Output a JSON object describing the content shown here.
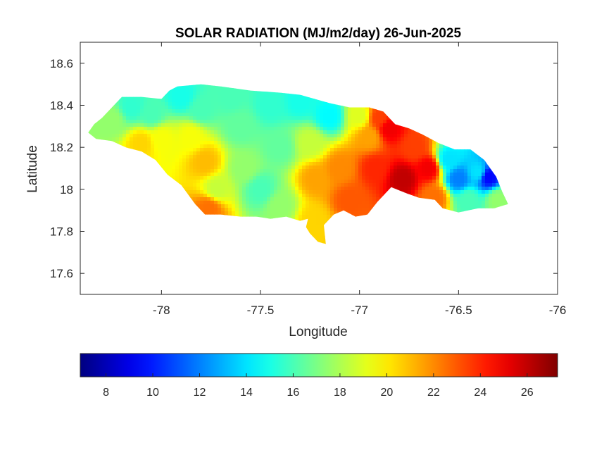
{
  "chart_data": {
    "type": "heatmap",
    "title": "SOLAR RADIATION (MJ/m2/day) 26-Jun-2025",
    "xlabel": "Longitude",
    "ylabel": "Latitude",
    "xlim": [
      -78.41,
      -76.0
    ],
    "ylim": [
      17.5,
      18.7
    ],
    "x_ticks": [
      "-78",
      "-77.5",
      "-77",
      "-76.5",
      "-76"
    ],
    "y_ticks": [
      "17.6",
      "17.8",
      "18",
      "18.2",
      "18.4",
      "18.6"
    ],
    "x_tick_values": [
      -78,
      -77.5,
      -77,
      -76.5,
      -76
    ],
    "y_tick_values": [
      17.6,
      17.8,
      18.0,
      18.2,
      18.4,
      18.6
    ],
    "colorbar": {
      "colormap": "jet",
      "range": [
        6.9,
        27.3
      ],
      "ticks": [
        "8",
        "10",
        "12",
        "14",
        "16",
        "18",
        "20",
        "22",
        "24",
        "26"
      ],
      "tick_values": [
        8,
        10,
        12,
        14,
        16,
        18,
        20,
        22,
        24,
        26
      ],
      "orientation": "horizontal",
      "location": "below"
    },
    "region_outline_lonlat": [
      [
        -78.37,
        18.27
      ],
      [
        -78.34,
        18.31
      ],
      [
        -78.3,
        18.34
      ],
      [
        -78.25,
        18.39
      ],
      [
        -78.2,
        18.44
      ],
      [
        -78.1,
        18.44
      ],
      [
        -78.0,
        18.43
      ],
      [
        -77.96,
        18.47
      ],
      [
        -77.92,
        18.49
      ],
      [
        -77.8,
        18.5
      ],
      [
        -77.7,
        18.49
      ],
      [
        -77.55,
        18.47
      ],
      [
        -77.4,
        18.46
      ],
      [
        -77.3,
        18.45
      ],
      [
        -77.15,
        18.41
      ],
      [
        -77.05,
        18.39
      ],
      [
        -76.95,
        18.39
      ],
      [
        -76.88,
        18.37
      ],
      [
        -76.82,
        18.31
      ],
      [
        -76.75,
        18.29
      ],
      [
        -76.68,
        18.26
      ],
      [
        -76.6,
        18.22
      ],
      [
        -76.52,
        18.19
      ],
      [
        -76.44,
        18.19
      ],
      [
        -76.37,
        18.14
      ],
      [
        -76.31,
        18.06
      ],
      [
        -76.28,
        17.99
      ],
      [
        -76.25,
        17.93
      ],
      [
        -76.32,
        17.91
      ],
      [
        -76.4,
        17.91
      ],
      [
        -76.5,
        17.89
      ],
      [
        -76.58,
        17.91
      ],
      [
        -76.62,
        17.95
      ],
      [
        -76.7,
        17.96
      ],
      [
        -76.76,
        17.98
      ],
      [
        -76.84,
        18.01
      ],
      [
        -76.91,
        17.94
      ],
      [
        -76.96,
        17.88
      ],
      [
        -77.02,
        17.87
      ],
      [
        -77.08,
        17.9
      ],
      [
        -77.13,
        17.88
      ],
      [
        -77.18,
        17.83
      ],
      [
        -77.17,
        17.74
      ],
      [
        -77.21,
        17.75
      ],
      [
        -77.25,
        17.79
      ],
      [
        -77.27,
        17.82
      ],
      [
        -77.26,
        17.86
      ],
      [
        -77.3,
        17.85
      ],
      [
        -77.37,
        17.87
      ],
      [
        -77.45,
        17.86
      ],
      [
        -77.52,
        17.87
      ],
      [
        -77.6,
        17.87
      ],
      [
        -77.7,
        17.88
      ],
      [
        -77.78,
        17.88
      ],
      [
        -77.83,
        17.93
      ],
      [
        -77.9,
        18.02
      ],
      [
        -77.97,
        18.07
      ],
      [
        -78.03,
        18.14
      ],
      [
        -78.1,
        18.18
      ],
      [
        -78.18,
        18.2
      ],
      [
        -78.25,
        18.23
      ],
      [
        -78.33,
        18.24
      ],
      [
        -78.37,
        18.27
      ]
    ],
    "field_centers": [
      {
        "lon": -78.25,
        "lat": 18.33,
        "value": 17.5
      },
      {
        "lon": -78.15,
        "lat": 18.39,
        "value": 15.5
      },
      {
        "lon": -78.05,
        "lat": 18.36,
        "value": 16.0
      },
      {
        "lon": -78.1,
        "lat": 18.22,
        "value": 20.5
      },
      {
        "lon": -78.0,
        "lat": 18.24,
        "value": 19.5
      },
      {
        "lon": -77.9,
        "lat": 18.44,
        "value": 15.0
      },
      {
        "lon": -77.8,
        "lat": 18.38,
        "value": 16.0
      },
      {
        "lon": -77.85,
        "lat": 18.25,
        "value": 19.5
      },
      {
        "lon": -77.78,
        "lat": 18.13,
        "value": 21.0
      },
      {
        "lon": -77.72,
        "lat": 18.0,
        "value": 18.5
      },
      {
        "lon": -77.76,
        "lat": 17.91,
        "value": 22.5
      },
      {
        "lon": -77.65,
        "lat": 18.44,
        "value": 16.0
      },
      {
        "lon": -77.6,
        "lat": 18.3,
        "value": 16.5
      },
      {
        "lon": -77.58,
        "lat": 18.1,
        "value": 17.5
      },
      {
        "lon": -77.5,
        "lat": 18.0,
        "value": 16.0
      },
      {
        "lon": -77.45,
        "lat": 18.4,
        "value": 15.5
      },
      {
        "lon": -77.4,
        "lat": 18.2,
        "value": 16.5
      },
      {
        "lon": -77.4,
        "lat": 17.92,
        "value": 17.5
      },
      {
        "lon": -77.3,
        "lat": 18.42,
        "value": 15.0
      },
      {
        "lon": -77.25,
        "lat": 18.22,
        "value": 18.5
      },
      {
        "lon": -77.22,
        "lat": 18.05,
        "value": 21.5
      },
      {
        "lon": -77.23,
        "lat": 17.85,
        "value": 20.5
      },
      {
        "lon": -77.15,
        "lat": 18.35,
        "value": 14.5
      },
      {
        "lon": -77.1,
        "lat": 18.1,
        "value": 22.0
      },
      {
        "lon": -77.05,
        "lat": 17.95,
        "value": 23.0
      },
      {
        "lon": -77.0,
        "lat": 18.35,
        "value": 19.0
      },
      {
        "lon": -76.95,
        "lat": 18.25,
        "value": 21.5
      },
      {
        "lon": -76.92,
        "lat": 18.1,
        "value": 24.0
      },
      {
        "lon": -76.9,
        "lat": 18.34,
        "value": 23.5
      },
      {
        "lon": -76.85,
        "lat": 18.29,
        "value": 25.0
      },
      {
        "lon": -76.78,
        "lat": 18.05,
        "value": 26.0
      },
      {
        "lon": -76.72,
        "lat": 18.2,
        "value": 23.5
      },
      {
        "lon": -76.65,
        "lat": 18.1,
        "value": 25.0
      },
      {
        "lon": -76.62,
        "lat": 17.96,
        "value": 22.5
      },
      {
        "lon": -76.55,
        "lat": 18.14,
        "value": 14.0
      },
      {
        "lon": -76.5,
        "lat": 18.05,
        "value": 12.0
      },
      {
        "lon": -76.45,
        "lat": 17.95,
        "value": 16.0
      },
      {
        "lon": -76.4,
        "lat": 18.08,
        "value": 14.0
      },
      {
        "lon": -76.35,
        "lat": 18.06,
        "value": 9.5
      },
      {
        "lon": -76.3,
        "lat": 17.95,
        "value": 17.5
      }
    ]
  }
}
